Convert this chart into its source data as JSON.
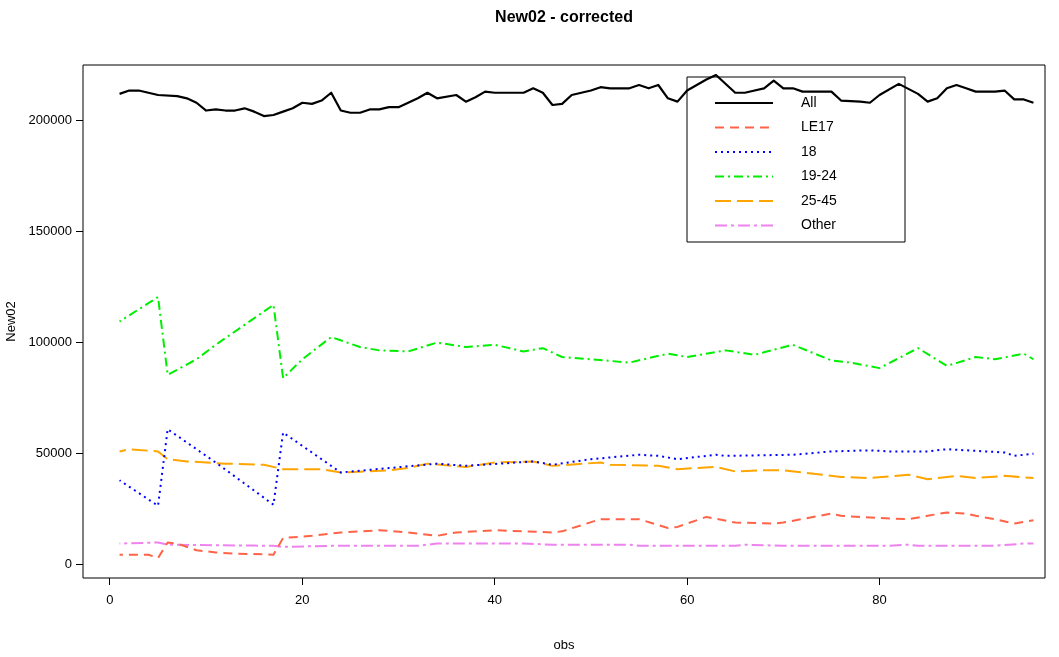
{
  "chart_data": {
    "type": "line",
    "title": "New02 - corrected",
    "xlabel": "obs",
    "ylabel": "New02",
    "xlim": [
      -2.8,
      97.2
    ],
    "ylim": [
      -6000,
      225000
    ],
    "xticks": [
      0,
      20,
      40,
      60,
      80
    ],
    "yticks": [
      0,
      50000,
      100000,
      150000,
      200000
    ],
    "grid": false,
    "legend": "top right",
    "marker": "none",
    "series": [
      {
        "name": "All",
        "color": "#000000",
        "line_style": "solid",
        "x": [
          1,
          2,
          3,
          5,
          7,
          8,
          9,
          10,
          11,
          12,
          13,
          14,
          15,
          16,
          17,
          18,
          19,
          20,
          21,
          22,
          23,
          24,
          25,
          26,
          27,
          28,
          29,
          30,
          32,
          33,
          34,
          36,
          37,
          38,
          39,
          40,
          42,
          43,
          44,
          45,
          46,
          47,
          48,
          50,
          51,
          52,
          54,
          55,
          56,
          57,
          58,
          59,
          60,
          61,
          62,
          63,
          65,
          66,
          68,
          69,
          70,
          71,
          72,
          75,
          76,
          78,
          79,
          80,
          82,
          84,
          85,
          86,
          87,
          88,
          89,
          90,
          91,
          92,
          93,
          94,
          95,
          96
        ],
        "values": [
          212000,
          213500,
          213500,
          211500,
          211000,
          210000,
          208000,
          204500,
          205000,
          204500,
          204500,
          205500,
          204000,
          202000,
          202500,
          204000,
          205500,
          208000,
          207500,
          209000,
          212500,
          204500,
          203500,
          203500,
          205000,
          205000,
          206000,
          206000,
          210000,
          212500,
          210000,
          211500,
          208500,
          210500,
          213000,
          212500,
          212500,
          212500,
          214500,
          212500,
          207000,
          207500,
          211500,
          213500,
          215000,
          214500,
          214500,
          216000,
          214500,
          216000,
          210000,
          208500,
          213500,
          216000,
          218500,
          220500,
          212500,
          212500,
          214500,
          218000,
          214500,
          214500,
          213000,
          213000,
          209000,
          208500,
          208000,
          211500,
          216500,
          212000,
          208500,
          210000,
          214500,
          216000,
          214500,
          213000,
          213000,
          213000,
          213500,
          209500,
          209500,
          208000
        ]
      },
      {
        "name": "LE17",
        "color": "#ff6347",
        "line_style": "dashed",
        "x": [
          1,
          4,
          5,
          6,
          7,
          9,
          11,
          13,
          17,
          18,
          21,
          24,
          28,
          31,
          34,
          36,
          40,
          46,
          47,
          51,
          55,
          58,
          59,
          62,
          65,
          69,
          70,
          75,
          76,
          80,
          83,
          85,
          87,
          89,
          90,
          92,
          94,
          96
        ],
        "values": [
          4500,
          4500,
          3000,
          10000,
          9500,
          6500,
          5500,
          5000,
          4500,
          12000,
          13000,
          14500,
          15500,
          14500,
          13000,
          14500,
          15500,
          14500,
          15000,
          20500,
          20500,
          16500,
          17000,
          21500,
          19000,
          18500,
          19000,
          23000,
          22000,
          21000,
          20500,
          22000,
          23500,
          23000,
          22000,
          20500,
          18500,
          20000
        ]
      },
      {
        "name": "18",
        "color": "#0000ff",
        "line_style": "dotted",
        "x": [
          1,
          5,
          6,
          11,
          17,
          18,
          24,
          29,
          34,
          37,
          44,
          46,
          50,
          55,
          57,
          59,
          63,
          64,
          71,
          75,
          79,
          81,
          85,
          87,
          89,
          93,
          94,
          96
        ],
        "values": [
          38000,
          26500,
          61000,
          46000,
          27000,
          59500,
          41500,
          43500,
          45500,
          44500,
          46500,
          45000,
          47500,
          49500,
          49000,
          47500,
          49500,
          49000,
          49500,
          51000,
          51500,
          51000,
          51000,
          52000,
          51500,
          50500,
          49000,
          50000
        ]
      },
      {
        "name": "19-24",
        "color": "#00ee00",
        "line_style": "dashed",
        "x": [
          1,
          5,
          6,
          9,
          11,
          17,
          18,
          20,
          23,
          26,
          28,
          31,
          34,
          37,
          40,
          43,
          45,
          47,
          50,
          54,
          58,
          60,
          64,
          67,
          71,
          75,
          77,
          80,
          84,
          87,
          90,
          92,
          95,
          96
        ],
        "values": [
          109500,
          120500,
          85500,
          92500,
          99000,
          117000,
          84000,
          92500,
          102500,
          98000,
          96500,
          96000,
          100000,
          98000,
          99000,
          96000,
          97500,
          93500,
          92500,
          91000,
          95000,
          93500,
          96500,
          94500,
          99000,
          92000,
          91000,
          88500,
          97500,
          89500,
          93500,
          92500,
          95000,
          92500
        ]
      },
      {
        "name": "25-45",
        "color": "#ffa500",
        "line_style": "dashed",
        "x": [
          1,
          2,
          5,
          6,
          8,
          12,
          16,
          18,
          22,
          24,
          29,
          31,
          33,
          37,
          40,
          44,
          46,
          51,
          52,
          57,
          59,
          63,
          65,
          68,
          70,
          72,
          76,
          79,
          83,
          85,
          88,
          90,
          93,
          96
        ],
        "values": [
          51000,
          52000,
          51000,
          47500,
          46500,
          45500,
          45000,
          43000,
          43000,
          41500,
          42500,
          43500,
          45500,
          44000,
          46000,
          46500,
          44500,
          46000,
          45000,
          44500,
          43000,
          44000,
          42000,
          42500,
          42500,
          41500,
          39500,
          39000,
          40500,
          38500,
          40000,
          39000,
          40000,
          39000
        ]
      },
      {
        "name": "Other",
        "color": "#ee82ee",
        "line_style": "dashed",
        "x": [
          1,
          5,
          6,
          17,
          18,
          23,
          24,
          32,
          34,
          43,
          46,
          54,
          55,
          64,
          65,
          66,
          70,
          81,
          83,
          84,
          92,
          95,
          96
        ],
        "values": [
          9500,
          10000,
          9000,
          8500,
          8000,
          8500,
          8500,
          8500,
          9500,
          9500,
          9000,
          9000,
          8500,
          8500,
          8500,
          9000,
          8500,
          8500,
          9000,
          8500,
          8500,
          9500,
          9500
        ]
      }
    ]
  }
}
